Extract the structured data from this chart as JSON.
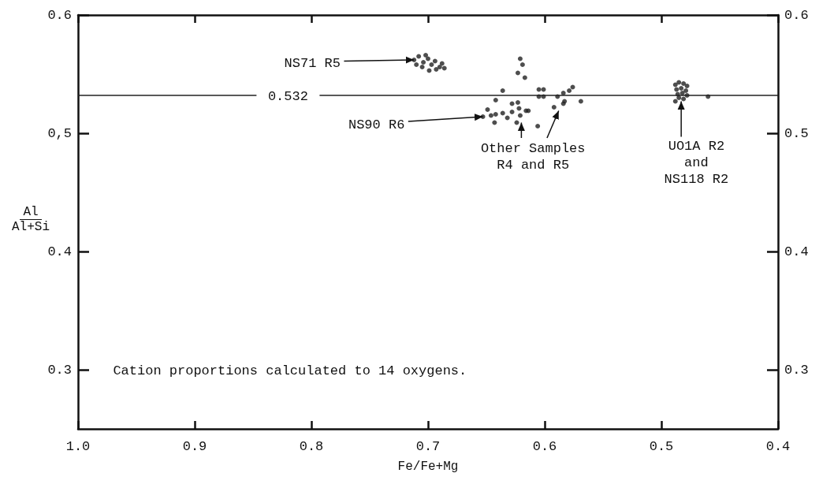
{
  "chart_data": {
    "type": "scatter",
    "xlabel": "Fe/Fe+Mg",
    "ylabel": "Al\nAl+Si",
    "xlim": [
      1.0,
      0.4
    ],
    "xticks": [
      {
        "value": 1.0,
        "label": "1.0"
      },
      0.9,
      0.8,
      0.7,
      0.6,
      0.5,
      {
        "value": 0.4,
        "label": "0.4"
      }
    ],
    "ylim": [
      0.25,
      0.6
    ],
    "yticks": [
      0.6,
      {
        "value": 0.5,
        "label": "0,5"
      },
      0.4,
      0.3
    ],
    "y2lim": [
      0.25,
      0.6
    ],
    "y2ticks": [
      0.6,
      0.5,
      0.4,
      0.3
    ],
    "grid": false,
    "marker": "circle",
    "ref_lines": [
      {
        "axis": "y",
        "value": 0.532,
        "label": "0.532"
      }
    ],
    "annotations": [
      {
        "text": "NS71 R5",
        "x": 0.712,
        "y": 0.562
      },
      {
        "text": "NS90 R6",
        "x": 0.653,
        "y": 0.514
      },
      {
        "text": "Other Samples\nR4 and R5",
        "x": 0.62,
        "y": 0.509
      },
      {
        "text": "UO1A R2\nand\nNS118 R2",
        "x": 0.483,
        "y": 0.527
      },
      "Cation proportions calculated to 14 oxygens."
    ],
    "series": [
      {
        "color": "#222222",
        "x": [
          0.712,
          0.708,
          0.704,
          0.7,
          0.697,
          0.694,
          0.69,
          0.705,
          0.699,
          0.693,
          0.688,
          0.71,
          0.702,
          0.686,
          0.621,
          0.619,
          0.623,
          0.617,
          0.636,
          0.642,
          0.605,
          0.601,
          0.605,
          0.601,
          0.589,
          0.584,
          0.579,
          0.576,
          0.583,
          0.584,
          0.569,
          0.592,
          0.649,
          0.653,
          0.646,
          0.642,
          0.643,
          0.636,
          0.632,
          0.628,
          0.623,
          0.622,
          0.628,
          0.616,
          0.621,
          0.624,
          0.614,
          0.606,
          0.488,
          0.485,
          0.481,
          0.478,
          0.487,
          0.483,
          0.479,
          0.486,
          0.482,
          0.478,
          0.485,
          0.481,
          0.488,
          0.46
        ],
        "values": [
          0.562,
          0.565,
          0.56,
          0.563,
          0.558,
          0.561,
          0.556,
          0.556,
          0.553,
          0.554,
          0.559,
          0.558,
          0.566,
          0.555,
          0.563,
          0.558,
          0.551,
          0.547,
          0.536,
          0.528,
          0.537,
          0.537,
          0.531,
          0.531,
          0.531,
          0.534,
          0.536,
          0.539,
          0.527,
          0.525,
          0.527,
          0.522,
          0.52,
          0.514,
          0.515,
          0.516,
          0.509,
          0.517,
          0.513,
          0.525,
          0.526,
          0.521,
          0.518,
          0.519,
          0.515,
          0.509,
          0.519,
          0.506,
          0.541,
          0.543,
          0.542,
          0.54,
          0.537,
          0.538,
          0.536,
          0.533,
          0.534,
          0.532,
          0.53,
          0.529,
          0.527,
          0.531
        ]
      }
    ]
  }
}
